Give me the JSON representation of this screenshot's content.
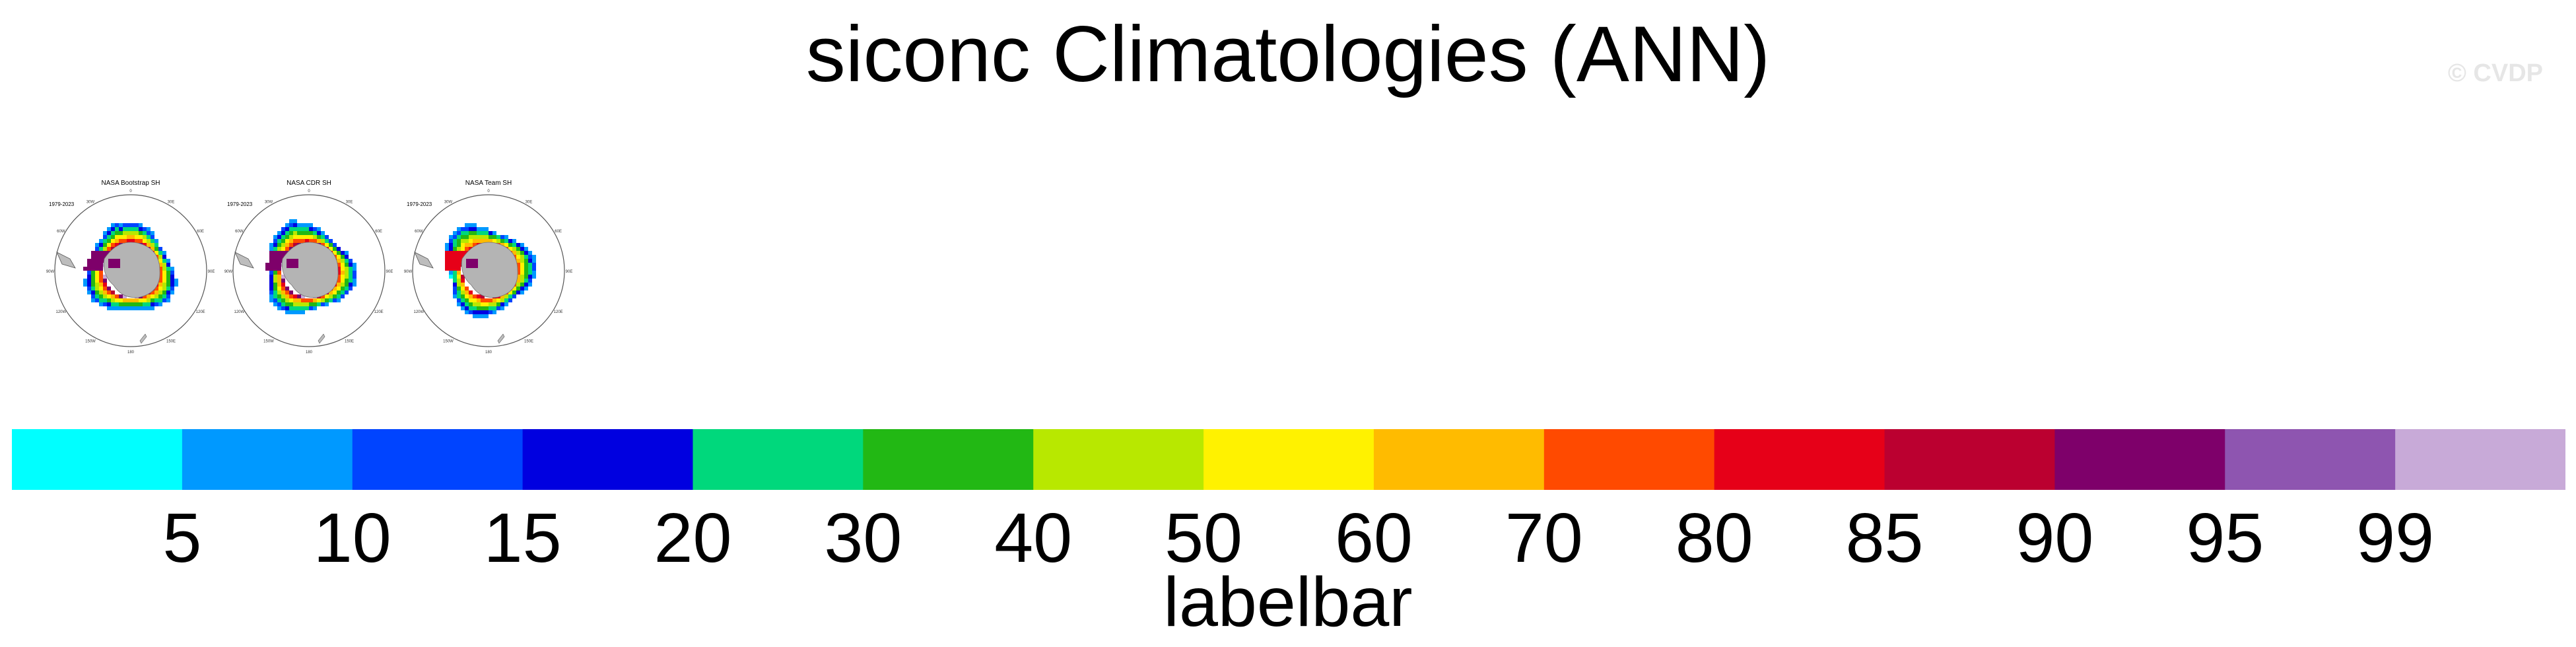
{
  "title": "siconc Climatologies (ANN)",
  "watermark": "© CVDP",
  "panels": [
    {
      "title": "NASA Bootstrap SH",
      "years": "1979-2023"
    },
    {
      "title": "NASA CDR SH",
      "years": "1979-2023"
    },
    {
      "title": "NASA Team SH",
      "years": "1979-2023"
    }
  ],
  "chart_data": {
    "type": "heatmap",
    "title": "siconc Climatologies (ANN)",
    "colorbar": {
      "label": "labelbar",
      "levels": [
        "5",
        "10",
        "15",
        "20",
        "30",
        "40",
        "50",
        "60",
        "70",
        "80",
        "85",
        "90",
        "95",
        "99"
      ],
      "colors": [
        "#00ffff",
        "#0099ff",
        "#0044ff",
        "#0000e0",
        "#00d87c",
        "#22b814",
        "#b8e800",
        "#fff200",
        "#ffbb00",
        "#ff4a00",
        "#e60018",
        "#bb0030",
        "#7e006a",
        "#8e55b0",
        "#c8aad8"
      ]
    }
  }
}
